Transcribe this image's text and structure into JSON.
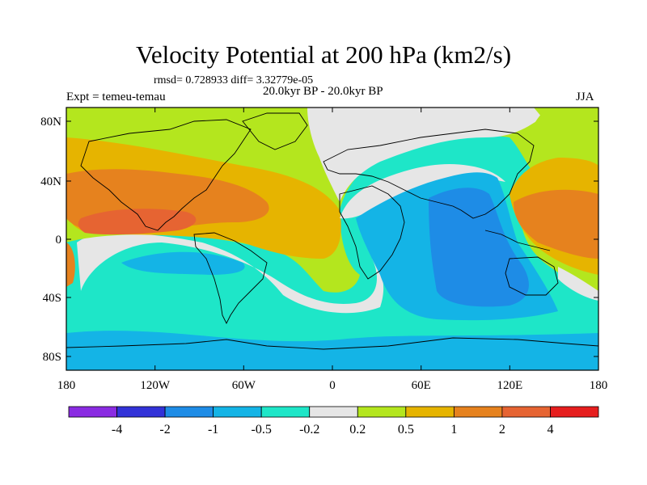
{
  "title": "Velocity Potential at 200 hPa (km2/s)",
  "stats": "rmsd= 0.728933 diff= 3.32779e-05",
  "left_label": "Expt = temeu-temau",
  "center_label": "20.0kyr BP - 20.0kyr BP",
  "right_label": "JJA",
  "map": {
    "lat_ticks": [
      "80N",
      "40N",
      "0",
      "40S",
      "80S"
    ],
    "lon_ticks": [
      "180",
      "120W",
      "60W",
      "0",
      "60E",
      "120E",
      "180"
    ]
  },
  "colorbar": {
    "colors": [
      "#8a2be2",
      "#3232d8",
      "#1e8ce6",
      "#14b4e6",
      "#1ee6c8",
      "#e6e6e6",
      "#b4e61e",
      "#e6b400",
      "#e6821e",
      "#e66432",
      "#e61e1e"
    ],
    "labels": [
      "-4",
      "-2",
      "-1",
      "-0.5",
      "-0.2",
      "0.2",
      "0.5",
      "1",
      "2",
      "4"
    ]
  }
}
